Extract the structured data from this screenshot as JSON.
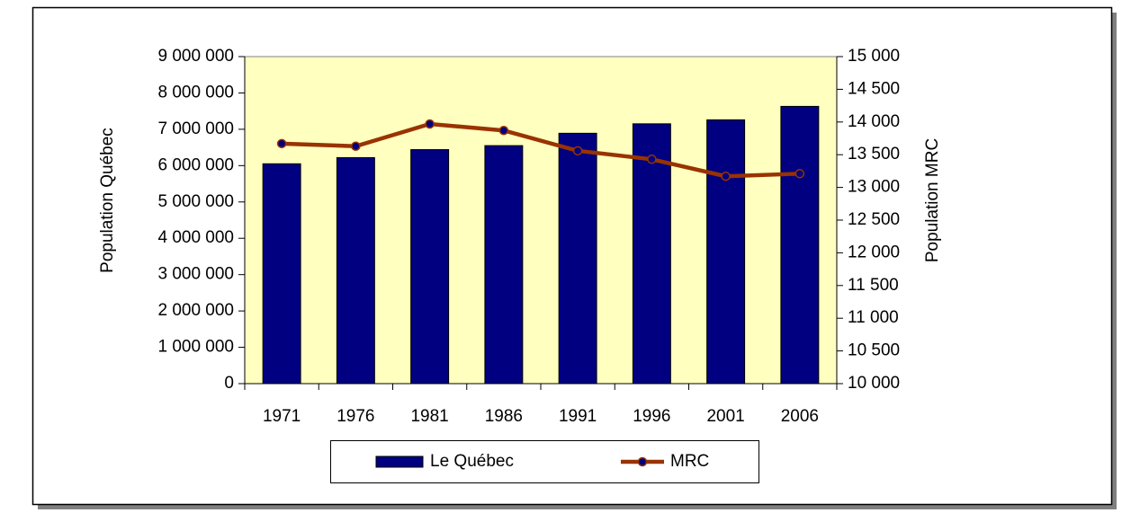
{
  "chart_data": {
    "type": "bar-line",
    "y_label": "Population Québec",
    "y2_label": "Population MRC",
    "categories": [
      "1971",
      "1976",
      "1981",
      "1986",
      "1991",
      "1996",
      "2001",
      "2006"
    ],
    "series": [
      {
        "name": "Le Québec",
        "type": "bar",
        "axis": "y",
        "color": "#000080",
        "values": [
          6050000,
          6220000,
          6440000,
          6550000,
          6890000,
          7150000,
          7260000,
          7630000
        ]
      },
      {
        "name": "MRC",
        "type": "line",
        "axis": "y2",
        "color": "#993300",
        "marker_color": "#000080",
        "values": [
          13670,
          13630,
          13970,
          13870,
          13560,
          13430,
          13170,
          13210
        ]
      }
    ],
    "ylim": [
      0,
      9000000
    ],
    "yticks": [
      {
        "value": 0,
        "label": "0"
      },
      {
        "value": 1000000,
        "label": "1 000 000"
      },
      {
        "value": 2000000,
        "label": "2 000 000"
      },
      {
        "value": 3000000,
        "label": "3 000 000"
      },
      {
        "value": 4000000,
        "label": "4 000 000"
      },
      {
        "value": 5000000,
        "label": "5 000 000"
      },
      {
        "value": 6000000,
        "label": "6 000 000"
      },
      {
        "value": 7000000,
        "label": "7 000 000"
      },
      {
        "value": 8000000,
        "label": "8 000 000"
      },
      {
        "value": 9000000,
        "label": "9 000 000"
      }
    ],
    "y2lim": [
      10000,
      15000
    ],
    "y2ticks": [
      {
        "value": 10000,
        "label": "10 000"
      },
      {
        "value": 10500,
        "label": "10 500"
      },
      {
        "value": 11000,
        "label": "11 000"
      },
      {
        "value": 11500,
        "label": "11 500"
      },
      {
        "value": 12000,
        "label": "12 000"
      },
      {
        "value": 12500,
        "label": "12 500"
      },
      {
        "value": 13000,
        "label": "13 000"
      },
      {
        "value": 13500,
        "label": "13 500"
      },
      {
        "value": 14000,
        "label": "14 000"
      },
      {
        "value": 14500,
        "label": "14 500"
      },
      {
        "value": 15000,
        "label": "15 000"
      }
    ],
    "plot_background": "#ffffc0"
  }
}
